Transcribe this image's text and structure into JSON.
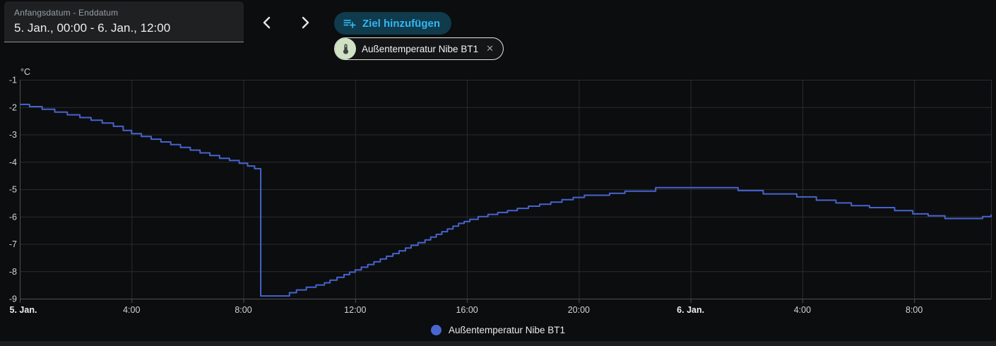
{
  "toolbar": {
    "date_range": {
      "label": "Anfangsdatum - Enddatum",
      "value": "5. Jan., 00:00 - 6. Jan., 12:00"
    },
    "add_target_label": "Ziel hinzufügen",
    "entity_chip": {
      "label": "Außentemperatur Nibe BT1",
      "close_glyph": "✕"
    }
  },
  "legend": {
    "items": [
      {
        "label": "Außentemperatur Nibe BT1",
        "color": "#4a66d2"
      }
    ]
  },
  "colors": {
    "background": "#0c0d0e",
    "accent_blue": "#35b6f0",
    "button_bg": "#0f3b4d",
    "chip_avatar_bg": "#cfe3c4",
    "chip_border": "#dfe7da",
    "grid": "#2a2c2f",
    "axis": "#4d5054",
    "tick_label": "#d2d4d6",
    "bold_tick_label": "#eceef0",
    "line": "#4663cf"
  },
  "chart_data": {
    "type": "line",
    "step": "after",
    "title": "",
    "xlabel": "",
    "ylabel": "°C",
    "grid": true,
    "legend_position": "bottom",
    "x_axis": {
      "origin": "5. Jan., 00:00",
      "unit": "hours since origin",
      "xlim": [
        0,
        34.75
      ],
      "ticks": [
        {
          "t": 0,
          "label": "5. Jan.",
          "bold": true
        },
        {
          "t": 4,
          "label": "4:00"
        },
        {
          "t": 8,
          "label": "8:00"
        },
        {
          "t": 12,
          "label": "12:00"
        },
        {
          "t": 16,
          "label": "16:00"
        },
        {
          "t": 20,
          "label": "20:00"
        },
        {
          "t": 24,
          "label": "6. Jan.",
          "bold": true
        },
        {
          "t": 28,
          "label": "4:00"
        },
        {
          "t": 32,
          "label": "8:00"
        }
      ]
    },
    "y_axis": {
      "unit": "°C",
      "ylim": [
        -9,
        -1
      ],
      "ticks": [
        -1,
        -2,
        -3,
        -4,
        -5,
        -6,
        -7,
        -8,
        -9
      ]
    },
    "series": [
      {
        "name": "Außentemperatur Nibe BT1",
        "color": "#4663cf",
        "points": [
          [
            0,
            -1.9
          ],
          [
            0.35,
            -1.98
          ],
          [
            0.8,
            -2.08
          ],
          [
            1.25,
            -2.18
          ],
          [
            1.7,
            -2.28
          ],
          [
            2.15,
            -2.38
          ],
          [
            2.55,
            -2.48
          ],
          [
            2.95,
            -2.58
          ],
          [
            3.35,
            -2.7
          ],
          [
            3.7,
            -2.85
          ],
          [
            4.0,
            -2.97
          ],
          [
            4.35,
            -3.07
          ],
          [
            4.7,
            -3.17
          ],
          [
            5.05,
            -3.27
          ],
          [
            5.4,
            -3.37
          ],
          [
            5.75,
            -3.47
          ],
          [
            6.1,
            -3.57
          ],
          [
            6.45,
            -3.67
          ],
          [
            6.8,
            -3.77
          ],
          [
            7.15,
            -3.87
          ],
          [
            7.5,
            -3.95
          ],
          [
            7.85,
            -4.05
          ],
          [
            8.15,
            -4.15
          ],
          [
            8.4,
            -4.25
          ],
          [
            8.62,
            -8.9
          ],
          [
            9.65,
            -8.78
          ],
          [
            9.9,
            -8.68
          ],
          [
            10.25,
            -8.58
          ],
          [
            10.6,
            -8.5
          ],
          [
            10.9,
            -8.42
          ],
          [
            11.1,
            -8.32
          ],
          [
            11.35,
            -8.22
          ],
          [
            11.6,
            -8.12
          ],
          [
            11.8,
            -8.03
          ],
          [
            12.0,
            -7.95
          ],
          [
            12.22,
            -7.85
          ],
          [
            12.45,
            -7.75
          ],
          [
            12.67,
            -7.65
          ],
          [
            12.9,
            -7.55
          ],
          [
            13.12,
            -7.45
          ],
          [
            13.35,
            -7.35
          ],
          [
            13.57,
            -7.25
          ],
          [
            13.8,
            -7.15
          ],
          [
            14.0,
            -7.05
          ],
          [
            14.25,
            -6.95
          ],
          [
            14.5,
            -6.85
          ],
          [
            14.7,
            -6.75
          ],
          [
            14.9,
            -6.65
          ],
          [
            15.1,
            -6.55
          ],
          [
            15.3,
            -6.45
          ],
          [
            15.5,
            -6.35
          ],
          [
            15.7,
            -6.25
          ],
          [
            15.9,
            -6.18
          ],
          [
            16.1,
            -6.1
          ],
          [
            16.4,
            -6.0
          ],
          [
            16.75,
            -5.92
          ],
          [
            17.1,
            -5.85
          ],
          [
            17.45,
            -5.78
          ],
          [
            17.8,
            -5.7
          ],
          [
            18.2,
            -5.62
          ],
          [
            18.6,
            -5.55
          ],
          [
            19.0,
            -5.47
          ],
          [
            19.4,
            -5.38
          ],
          [
            19.8,
            -5.3
          ],
          [
            20.2,
            -5.22
          ],
          [
            21.1,
            -5.15
          ],
          [
            21.65,
            -5.07
          ],
          [
            22.75,
            -4.94
          ],
          [
            25.7,
            -5.05
          ],
          [
            26.6,
            -5.17
          ],
          [
            27.8,
            -5.28
          ],
          [
            28.5,
            -5.4
          ],
          [
            29.2,
            -5.5
          ],
          [
            29.75,
            -5.6
          ],
          [
            30.4,
            -5.67
          ],
          [
            31.3,
            -5.78
          ],
          [
            31.95,
            -5.9
          ],
          [
            32.5,
            -5.97
          ],
          [
            33.1,
            -6.07
          ],
          [
            34.45,
            -6.0
          ],
          [
            34.75,
            -5.95
          ]
        ]
      }
    ]
  }
}
